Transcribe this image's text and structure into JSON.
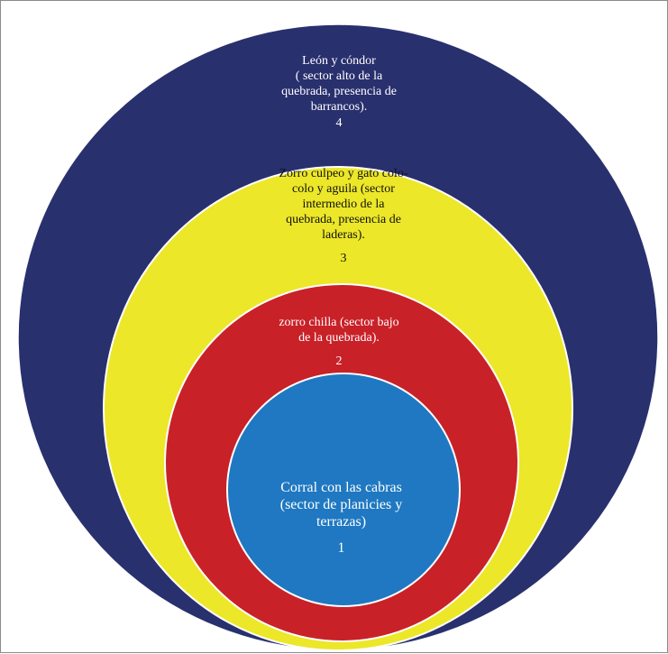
{
  "colors": {
    "level4": "#29306e",
    "level3": "#ece728",
    "level2": "#c92128",
    "level1": "#1f78c1",
    "stroke": "#ffffff",
    "frame": "#8a8a8a"
  },
  "levels": [
    {
      "number": "4",
      "text": "León y cóndor\n( sector alto de la\nquebrada, presencia de\nbarrancos)."
    },
    {
      "number": "3",
      "text": "Zorro culpeo y gato colo-\ncolo y aguila (sector\nintermedio de la\nquebrada,  presencia de\nladeras)."
    },
    {
      "number": "2",
      "text": "zorro chilla (sector bajo\nde la quebrada)."
    },
    {
      "number": "1",
      "text": "Corral con las cabras\n(sector de planicies y\nterrazas)"
    }
  ]
}
